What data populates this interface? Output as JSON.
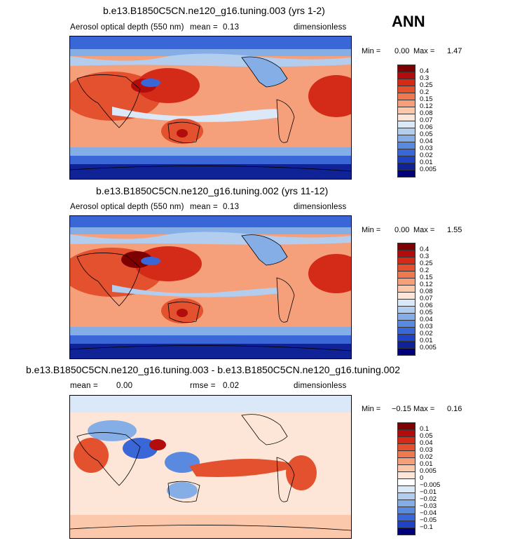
{
  "season": "ANN",
  "panels": [
    {
      "id": "p1",
      "title": "b.e13.B1850C5CN.ne120_g16.tuning.003 (yrs 1-2)",
      "var_label": "Aerosol optical depth (550 nm)",
      "mean_label": "mean =",
      "mean_value": "0.13",
      "units": "dimensionless",
      "min_label": "Min =",
      "min_value": "0.00",
      "max_label": "Max =",
      "max_value": "1.47",
      "colorbar_labels": [
        "0.4",
        "0.3",
        "0.25",
        "0.2",
        "0.15",
        "0.12",
        "0.08",
        "0.07",
        "0.06",
        "0.05",
        "0.04",
        "0.03",
        "0.02",
        "0.01",
        "0.005"
      ]
    },
    {
      "id": "p2",
      "title": "b.e13.B1850C5CN.ne120_g16.tuning.002 (yrs 11-12)",
      "var_label": "Aerosol optical depth (550 nm)",
      "mean_label": "mean =",
      "mean_value": "0.13",
      "units": "dimensionless",
      "min_label": "Min =",
      "min_value": "0.00",
      "max_label": "Max =",
      "max_value": "1.55",
      "colorbar_labels": [
        "0.4",
        "0.3",
        "0.25",
        "0.2",
        "0.15",
        "0.12",
        "0.08",
        "0.07",
        "0.06",
        "0.05",
        "0.04",
        "0.03",
        "0.02",
        "0.01",
        "0.005"
      ]
    },
    {
      "id": "p3",
      "title": "b.e13.B1850C5CN.ne120_g16.tuning.003 - b.e13.B1850C5CN.ne120_g16.tuning.002",
      "mean_label": "mean =",
      "mean_value": "0.00",
      "rmse_label": "rmse =",
      "rmse_value": "0.02",
      "units": "dimensionless",
      "min_label": "Min =",
      "min_value": "−0.15",
      "max_label": "Max =",
      "max_value": "0.16",
      "colorbar_labels": [
        "0.1",
        "0.05",
        "0.04",
        "0.03",
        "0.02",
        "0.01",
        "0.005",
        "0",
        "−0.005",
        "−0.01",
        "−0.02",
        "−0.03",
        "−0.04",
        "−0.05",
        "−0.1"
      ]
    }
  ],
  "colors": {
    "abs_scale": [
      "#7f0000",
      "#b30c0c",
      "#d42a18",
      "#e3512e",
      "#ef7a52",
      "#f6a07b",
      "#fbc8ac",
      "#fde6d8",
      "#dbe8f7",
      "#b3cdef",
      "#85ade6",
      "#5a8ae0",
      "#3a67d8",
      "#1f43c4",
      "#0f2396",
      "#00007a"
    ],
    "diff_scale": [
      "#7f0000",
      "#b30c0c",
      "#d42a18",
      "#e3512e",
      "#ef7a52",
      "#f6a07b",
      "#fbc8ac",
      "#fde6d8",
      "#ffffff",
      "#dbe8f7",
      "#b3cdef",
      "#85ade6",
      "#5a8ae0",
      "#3a67d8",
      "#1f43c4",
      "#00007a"
    ]
  },
  "chart_data": [
    {
      "type": "heatmap",
      "title": "b.e13.B1850C5CN.ne120_g16.tuning.003 (yrs 1-2)",
      "variable": "Aerosol optical depth (550 nm)",
      "units": "dimensionless",
      "mean": 0.13,
      "min": 0.0,
      "max": 1.47,
      "levels": [
        0.005,
        0.01,
        0.02,
        0.03,
        0.04,
        0.05,
        0.06,
        0.07,
        0.08,
        0.12,
        0.15,
        0.2,
        0.25,
        0.3,
        0.4
      ],
      "legend": "right"
    },
    {
      "type": "heatmap",
      "title": "b.e13.B1850C5CN.ne120_g16.tuning.002 (yrs 11-12)",
      "variable": "Aerosol optical depth (550 nm)",
      "units": "dimensionless",
      "mean": 0.13,
      "min": 0.0,
      "max": 1.55,
      "levels": [
        0.005,
        0.01,
        0.02,
        0.03,
        0.04,
        0.05,
        0.06,
        0.07,
        0.08,
        0.12,
        0.15,
        0.2,
        0.25,
        0.3,
        0.4
      ],
      "legend": "right"
    },
    {
      "type": "heatmap",
      "title": "b.e13.B1850C5CN.ne120_g16.tuning.003 - b.e13.B1850C5CN.ne120_g16.tuning.002",
      "units": "dimensionless",
      "mean": 0.0,
      "rmse": 0.02,
      "min": -0.15,
      "max": 0.16,
      "levels": [
        -0.1,
        -0.05,
        -0.04,
        -0.03,
        -0.02,
        -0.01,
        -0.005,
        0,
        0.005,
        0.01,
        0.02,
        0.03,
        0.04,
        0.05,
        0.1
      ],
      "legend": "right"
    }
  ]
}
